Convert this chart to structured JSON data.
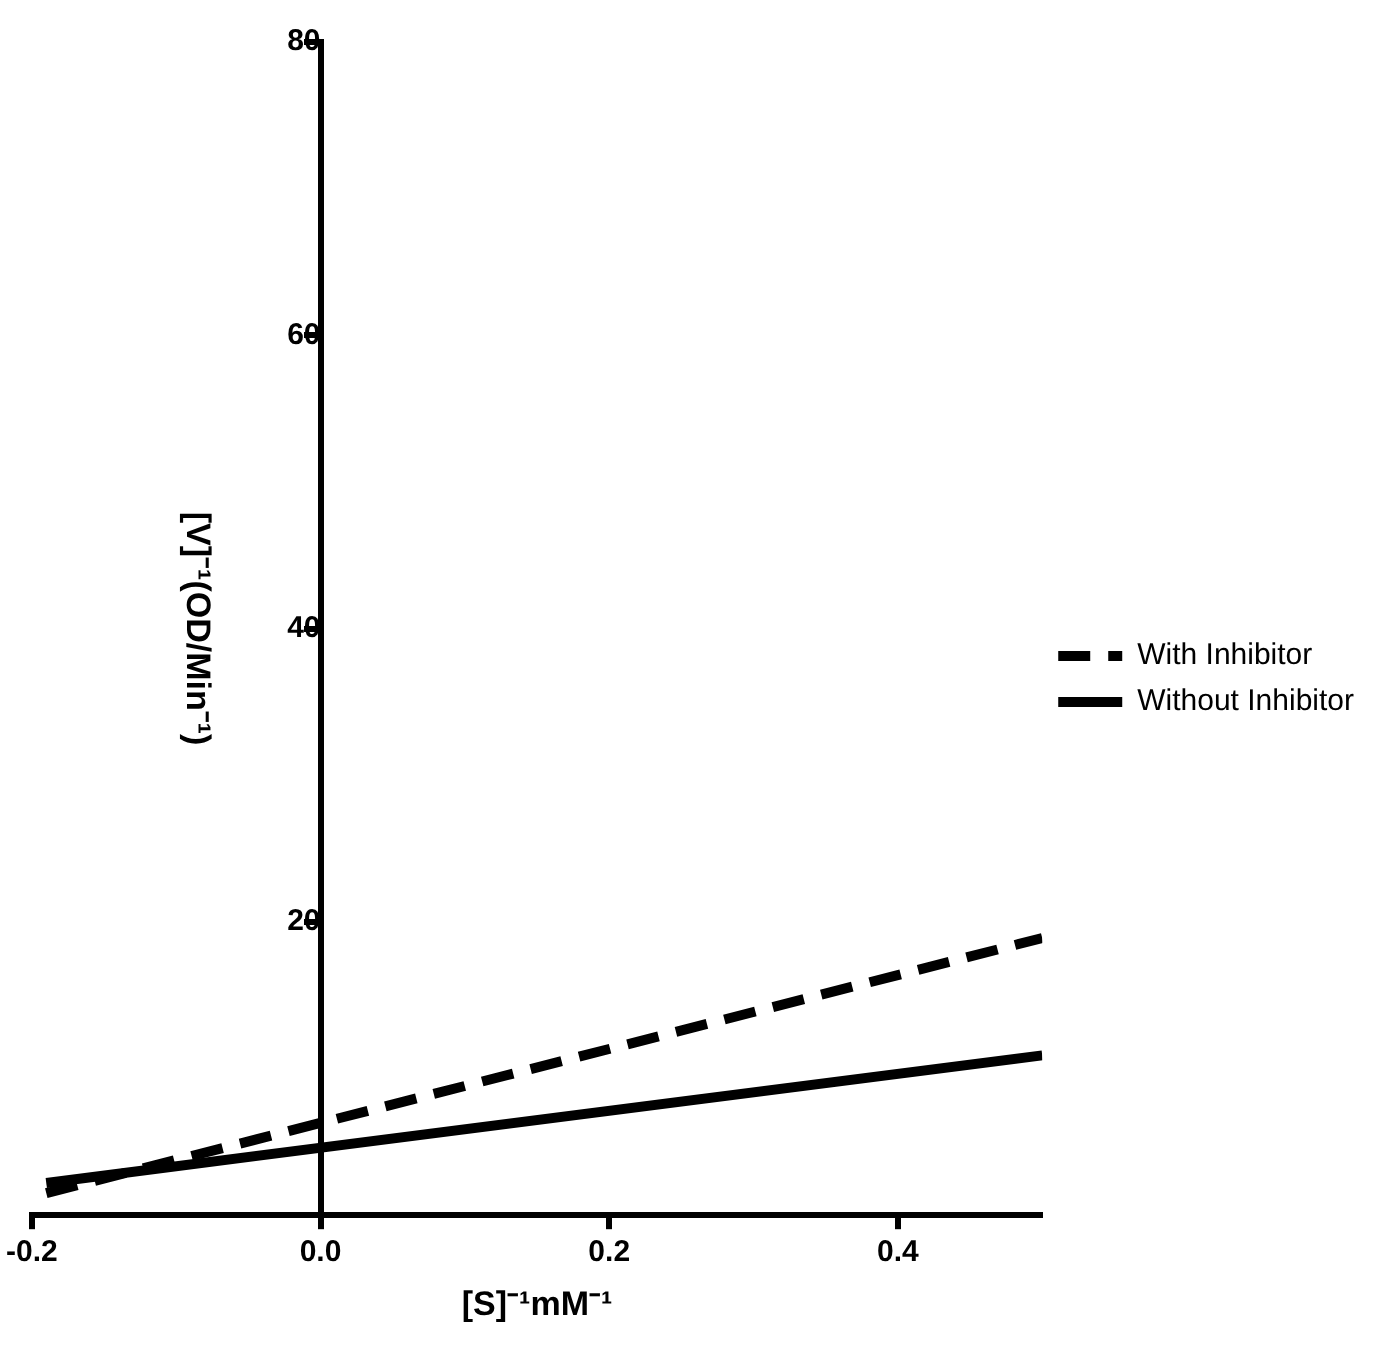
{
  "chart_data": {
    "type": "line",
    "xlabel": "[S]⁻¹mM⁻¹",
    "ylabel": "[V]⁻¹(OD/Min⁻¹)",
    "x": [
      -0.19,
      0.5
    ],
    "series": [
      {
        "name": "With Inhibitor",
        "color": "#000000",
        "values": [
          1.5,
          18.9
        ],
        "line_style": "dashed"
      },
      {
        "name": "Without Inhibitor",
        "color": "#000000",
        "values": [
          2.2,
          10.9
        ],
        "line_style": "solid"
      }
    ],
    "xlim": [
      -0.2,
      0.5
    ],
    "xticks": [
      -0.2,
      {
        "value": 0,
        "label": "0.0"
      },
      0.2,
      0.4
    ],
    "ylim": [
      0,
      80
    ],
    "yticks": [
      20,
      40,
      60,
      80
    ],
    "grid": false,
    "legend": "right",
    "marker": "none"
  }
}
